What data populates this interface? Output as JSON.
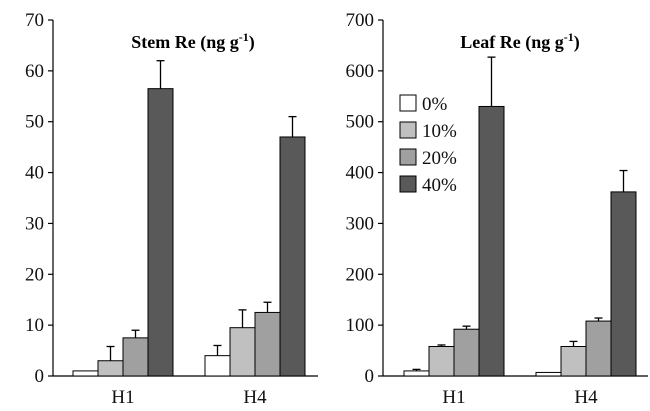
{
  "chart_data": [
    {
      "type": "bar",
      "title_main": "Stem Re (ng g",
      "title_sup": "-1",
      "title_close": ")",
      "categories": [
        "H1",
        "H4"
      ],
      "ylim": [
        0,
        70
      ],
      "yticks": [
        0,
        10,
        20,
        30,
        40,
        50,
        60,
        70
      ],
      "series": [
        {
          "name": "0%",
          "color": "#ffffff",
          "values": [
            1.0,
            4.0
          ],
          "errors": [
            0.0,
            2.0
          ]
        },
        {
          "name": "10%",
          "color": "#c0c0c0",
          "values": [
            3.0,
            9.5
          ],
          "errors": [
            2.8,
            3.5
          ]
        },
        {
          "name": "20%",
          "color": "#a0a0a0",
          "values": [
            7.5,
            12.5
          ],
          "errors": [
            1.5,
            2.0
          ]
        },
        {
          "name": "40%",
          "color": "#595959",
          "values": [
            56.5,
            47.0
          ],
          "errors": [
            5.5,
            4.0
          ]
        }
      ]
    },
    {
      "type": "bar",
      "title_main": "Leaf Re (ng g",
      "title_sup": "-1",
      "title_close": ")",
      "categories": [
        "H1",
        "H4"
      ],
      "ylim": [
        0,
        700
      ],
      "yticks": [
        0,
        100,
        200,
        300,
        400,
        500,
        600,
        700
      ],
      "series": [
        {
          "name": "0%",
          "color": "#ffffff",
          "values": [
            10,
            7
          ],
          "errors": [
            3,
            0
          ]
        },
        {
          "name": "10%",
          "color": "#c0c0c0",
          "values": [
            58,
            58
          ],
          "errors": [
            3,
            10
          ]
        },
        {
          "name": "20%",
          "color": "#a0a0a0",
          "values": [
            92,
            108
          ],
          "errors": [
            6,
            6
          ]
        },
        {
          "name": "40%",
          "color": "#595959",
          "values": [
            530,
            362
          ],
          "errors": [
            97,
            42
          ]
        }
      ],
      "legend": [
        "0%",
        "10%",
        "20%",
        "40%"
      ],
      "legend_placement": "top-left"
    }
  ]
}
